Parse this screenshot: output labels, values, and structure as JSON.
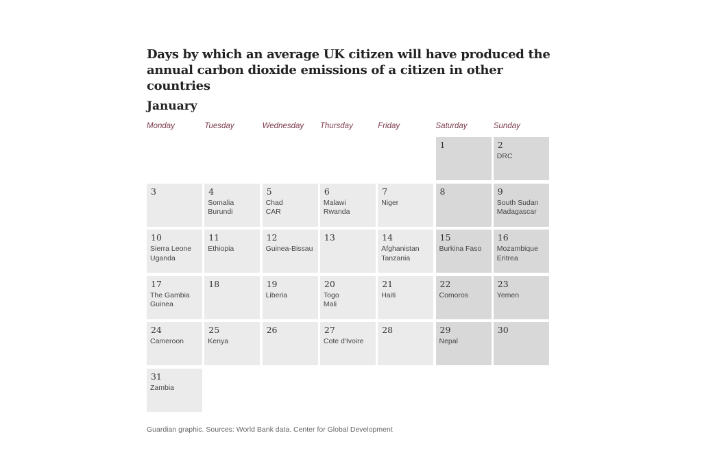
{
  "title": "Days by which an average UK citizen will have produced the annual carbon dioxide emissions of a citizen in other countries",
  "month": "January",
  "weekdays": [
    "Monday",
    "Tuesday",
    "Wednesday",
    "Thursday",
    "Friday",
    "Saturday",
    "Sunday"
  ],
  "footer": "Guardian graphic. Sources: World Bank data. Center for Global Development",
  "colors": {
    "weekday_cell": "#ebebeb",
    "weekend_cell": "#d8d8d8",
    "weekday_label": "#7a3a4a"
  },
  "chart_data": {
    "type": "table",
    "first_weekday_index": 5,
    "days": [
      {
        "day": 1,
        "countries": []
      },
      {
        "day": 2,
        "countries": [
          "DRC"
        ]
      },
      {
        "day": 3,
        "countries": []
      },
      {
        "day": 4,
        "countries": [
          "Somalia",
          "Burundi"
        ]
      },
      {
        "day": 5,
        "countries": [
          "Chad",
          "CAR"
        ]
      },
      {
        "day": 6,
        "countries": [
          "Malawi",
          "Rwanda"
        ]
      },
      {
        "day": 7,
        "countries": [
          "Niger"
        ]
      },
      {
        "day": 8,
        "countries": []
      },
      {
        "day": 9,
        "countries": [
          "South Sudan",
          "Madagascar"
        ]
      },
      {
        "day": 10,
        "countries": [
          "Sierra Leone",
          "Uganda"
        ]
      },
      {
        "day": 11,
        "countries": [
          "Ethiopia"
        ]
      },
      {
        "day": 12,
        "countries": [
          "Guinea-Bissau"
        ]
      },
      {
        "day": 13,
        "countries": []
      },
      {
        "day": 14,
        "countries": [
          "Afghanistan",
          "Tanzania"
        ]
      },
      {
        "day": 15,
        "countries": [
          "Burkina Faso"
        ]
      },
      {
        "day": 16,
        "countries": [
          "Mozambique",
          "Eritrea"
        ]
      },
      {
        "day": 17,
        "countries": [
          "The Gambia",
          "Guinea"
        ]
      },
      {
        "day": 18,
        "countries": []
      },
      {
        "day": 19,
        "countries": [
          "Liberia"
        ]
      },
      {
        "day": 20,
        "countries": [
          "Togo",
          "Mali"
        ]
      },
      {
        "day": 21,
        "countries": [
          "Haiti"
        ]
      },
      {
        "day": 22,
        "countries": [
          "Comoros"
        ]
      },
      {
        "day": 23,
        "countries": [
          "Yemen"
        ]
      },
      {
        "day": 24,
        "countries": [
          "Cameroon"
        ]
      },
      {
        "day": 25,
        "countries": [
          "Kenya"
        ]
      },
      {
        "day": 26,
        "countries": []
      },
      {
        "day": 27,
        "countries": [
          "Cote d'Ivoire"
        ]
      },
      {
        "day": 28,
        "countries": []
      },
      {
        "day": 29,
        "countries": [
          "Nepal"
        ]
      },
      {
        "day": 30,
        "countries": []
      },
      {
        "day": 31,
        "countries": [
          "Zambia"
        ]
      }
    ]
  }
}
